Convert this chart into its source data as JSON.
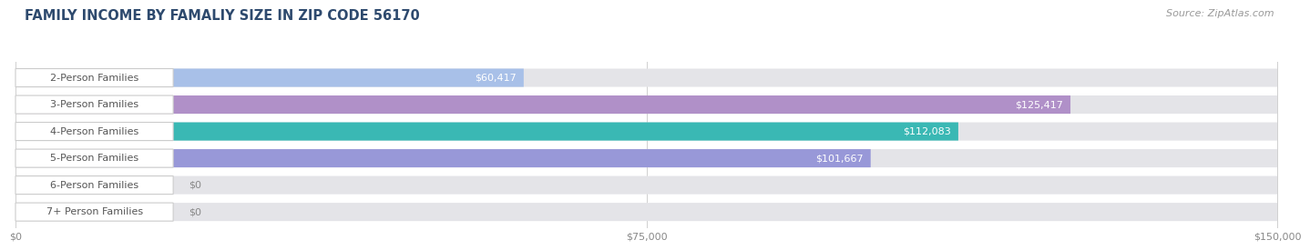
{
  "title": "FAMILY INCOME BY FAMALIY SIZE IN ZIP CODE 56170",
  "source": "Source: ZipAtlas.com",
  "categories": [
    "2-Person Families",
    "3-Person Families",
    "4-Person Families",
    "5-Person Families",
    "6-Person Families",
    "7+ Person Families"
  ],
  "values": [
    60417,
    125417,
    112083,
    101667,
    0,
    0
  ],
  "bar_colors": [
    "#a8c0e8",
    "#b090c8",
    "#3ab8b4",
    "#9898d8",
    "#f4a0b0",
    "#f0c898"
  ],
  "x_max": 150000,
  "x_ticks": [
    0,
    75000,
    150000
  ],
  "x_tick_labels": [
    "$0",
    "$75,000",
    "$150,000"
  ],
  "background_color": "#ffffff",
  "bar_bg_color": "#e4e4e8",
  "label_bg_color": "#ffffff",
  "title_color": "#2e4a6e",
  "source_color": "#999999",
  "title_fontsize": 10.5,
  "source_fontsize": 8,
  "value_fontsize": 8,
  "category_fontsize": 8,
  "value_label_color_inside": "#ffffff",
  "value_label_color_outside": "#888888"
}
